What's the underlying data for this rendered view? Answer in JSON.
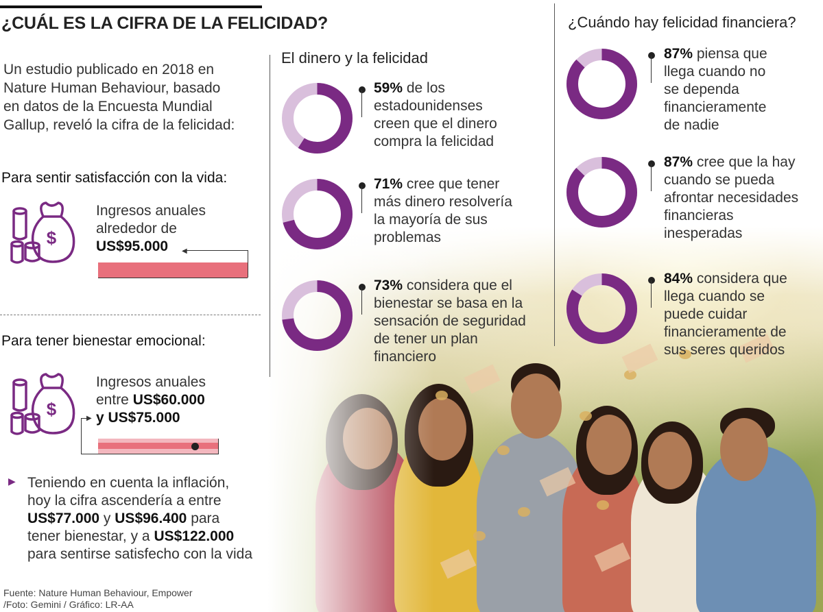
{
  "title": "¿CUÁL ES LA CIFRA DE LA FELICIDAD?",
  "intro": {
    "line1": "Un estudio publicado en 2018 en",
    "line2": "Nature Human Behaviour, basado",
    "line3": "en datos de la Encuesta Mundial",
    "line4": "Gallup, reveló la cifra de la felicidad:"
  },
  "satisfaction": {
    "heading": "Para sentir satisfacción con la vida:",
    "line1": "Ingresos anuales",
    "line2": "alrededor de",
    "amount": "US$95.000"
  },
  "wellbeing": {
    "heading": "Para tener bienestar emocional:",
    "line1": "Ingresos anuales",
    "line2_pre": "entre ",
    "line2_bold": "US$60.000",
    "line3_bold": "y US$75.000"
  },
  "inflation_note": {
    "l1": "Teniendo en cuenta la inflación,",
    "l2": "hoy la cifra ascendería a entre",
    "l3a": "US$77.000",
    "l3b": " y ",
    "l3c": "US$96.400",
    "l3d": " para",
    "l4a": "tener bienestar, y a ",
    "l4b": "US$122.000",
    "l5": "para sentirse satisfecho con la vida"
  },
  "footer": {
    "l1": "Fuente: Nature Human Behaviour, Empower",
    "l2": "/Foto: Gemini / Gráfico: LR-AA"
  },
  "colors": {
    "donut_main": "#7a2a83",
    "donut_rest": "#d9bfdc",
    "bar_pink": "#e8707c",
    "bar_light": "#f3b7be"
  },
  "chart_data": [
    {
      "type": "donut",
      "title": "El dinero y la felicidad",
      "items": [
        {
          "value": 59,
          "label_bold": "59%",
          "lines": [
            " de los",
            "estadounidenses",
            "creen que el dinero",
            "compra la felicidad"
          ]
        },
        {
          "value": 71,
          "label_bold": "71%",
          "lines": [
            " cree que tener",
            "más dinero resolvería",
            "la mayoría de sus",
            "problemas"
          ]
        },
        {
          "value": 73,
          "label_bold": "73%",
          "lines": [
            " considera que el",
            "bienestar se basa en la",
            "sensación de seguridad",
            "de tener un plan",
            "financiero"
          ]
        }
      ]
    },
    {
      "type": "donut",
      "title": "¿Cuándo hay felicidad financiera?",
      "items": [
        {
          "value": 87,
          "label_bold": "87%",
          "lines": [
            " piensa que",
            "llega cuando no",
            "se dependa",
            "financieramente",
            "de nadie"
          ]
        },
        {
          "value": 87,
          "label_bold": "87%",
          "lines": [
            " cree que la hay",
            "cuando se pueda",
            "afrontar necesidades",
            "financieras",
            "inesperadas"
          ]
        },
        {
          "value": 84,
          "label_bold": "84%",
          "lines": [
            " considera que",
            "llega cuando se",
            "puede cuidar",
            "financieramente de",
            "sus seres queridos"
          ]
        }
      ]
    }
  ]
}
